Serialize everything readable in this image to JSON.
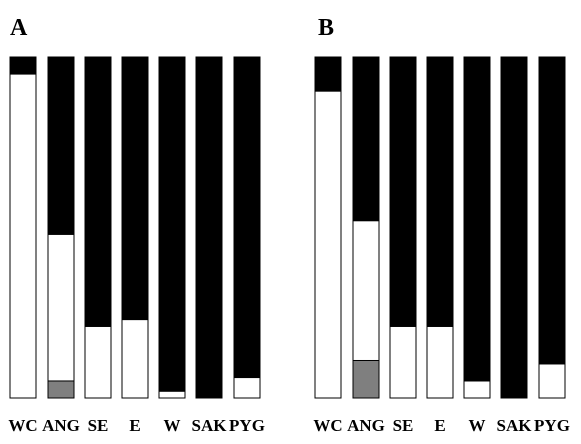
{
  "chart_data": [
    {
      "panel": "A",
      "type": "bar",
      "stacked": true,
      "orientation": "vertical",
      "categories": [
        "WC",
        "ANG",
        "SE",
        "E",
        "W",
        "SAK",
        "PYG"
      ],
      "series": [
        {
          "color": "#7f7f7f",
          "values": [
            0.0,
            0.05,
            0.0,
            0.0,
            0.0,
            0.0,
            0.0
          ]
        },
        {
          "color": "#ffffff",
          "values": [
            0.95,
            0.43,
            0.21,
            0.23,
            0.02,
            0.0,
            0.06
          ]
        },
        {
          "color": "#000000",
          "values": [
            0.05,
            0.52,
            0.79,
            0.77,
            0.98,
            1.0,
            0.94
          ]
        }
      ],
      "ylim": [
        0,
        1
      ],
      "xlabel": "",
      "ylabel": "",
      "grid": false
    },
    {
      "panel": "B",
      "type": "bar",
      "stacked": true,
      "orientation": "vertical",
      "categories": [
        "WC",
        "ANG",
        "SE",
        "E",
        "W",
        "SAK",
        "PYG"
      ],
      "series": [
        {
          "color": "#7f7f7f",
          "values": [
            0.0,
            0.11,
            0.0,
            0.0,
            0.0,
            0.0,
            0.0
          ]
        },
        {
          "color": "#ffffff",
          "values": [
            0.9,
            0.41,
            0.21,
            0.21,
            0.05,
            0.0,
            0.1
          ]
        },
        {
          "color": "#000000",
          "values": [
            0.1,
            0.48,
            0.79,
            0.79,
            0.95,
            1.0,
            0.9
          ]
        }
      ],
      "ylim": [
        0,
        1
      ],
      "xlabel": "",
      "ylabel": "",
      "grid": false
    }
  ]
}
